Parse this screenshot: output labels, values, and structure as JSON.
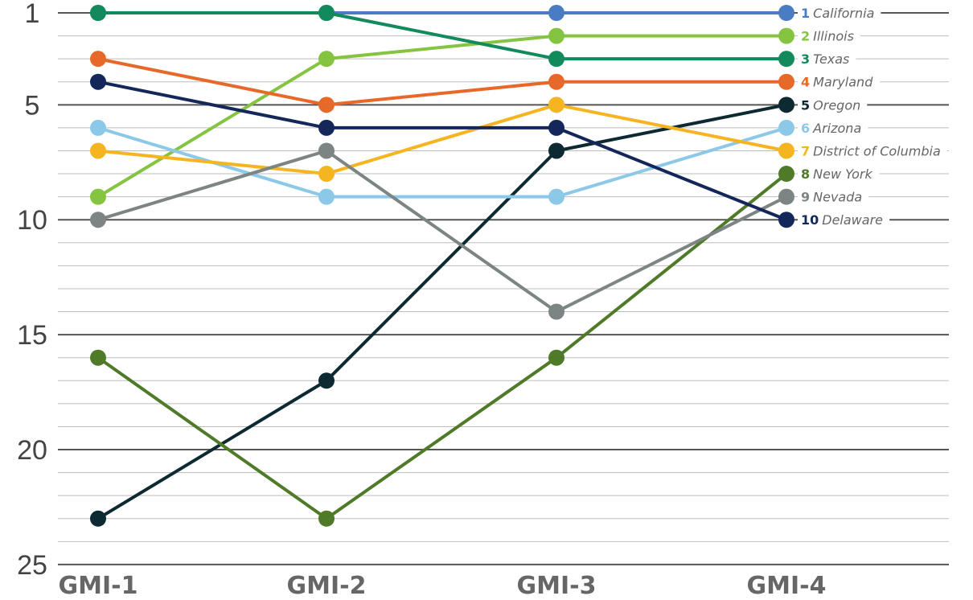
{
  "chart_data": {
    "type": "line",
    "categories": [
      "GMI-1",
      "GMI-2",
      "GMI-3",
      "GMI-4"
    ],
    "y_axis": {
      "ticks": [
        1,
        5,
        10,
        15,
        20,
        25
      ],
      "range": [
        1,
        25
      ],
      "inverted": true
    },
    "grid": true,
    "series": [
      {
        "rank_label": "1",
        "name": "California",
        "color": "#4a7cc4",
        "values": [
          1,
          1,
          1,
          1
        ]
      },
      {
        "rank_label": "2",
        "name": "Illinois",
        "color": "#85c441",
        "values": [
          9,
          3,
          2,
          2
        ]
      },
      {
        "rank_label": "3",
        "name": "Texas",
        "color": "#138a5c",
        "values": [
          1,
          1,
          3,
          3
        ]
      },
      {
        "rank_label": "4",
        "name": "Maryland",
        "color": "#e6692a",
        "values": [
          3,
          5,
          4,
          4
        ]
      },
      {
        "rank_label": "5",
        "name": "Oregon",
        "color": "#0d2a33",
        "values": [
          23,
          17,
          7,
          5
        ]
      },
      {
        "rank_label": "6",
        "name": "Arizona",
        "color": "#8cc8e8",
        "values": [
          6,
          9,
          9,
          6
        ]
      },
      {
        "rank_label": "7",
        "name": "District of Columbia",
        "color": "#f4b520",
        "values": [
          7,
          8,
          5,
          7
        ]
      },
      {
        "rank_label": "8",
        "name": "New York",
        "color": "#4f7a28",
        "values": [
          16,
          23,
          16,
          8
        ]
      },
      {
        "rank_label": "9",
        "name": "Nevada",
        "color": "#7d8584",
        "values": [
          10,
          7,
          14,
          9
        ]
      },
      {
        "rank_label": "10",
        "name": "Delaware",
        "color": "#14275a",
        "values": [
          4,
          6,
          6,
          10
        ]
      }
    ]
  }
}
